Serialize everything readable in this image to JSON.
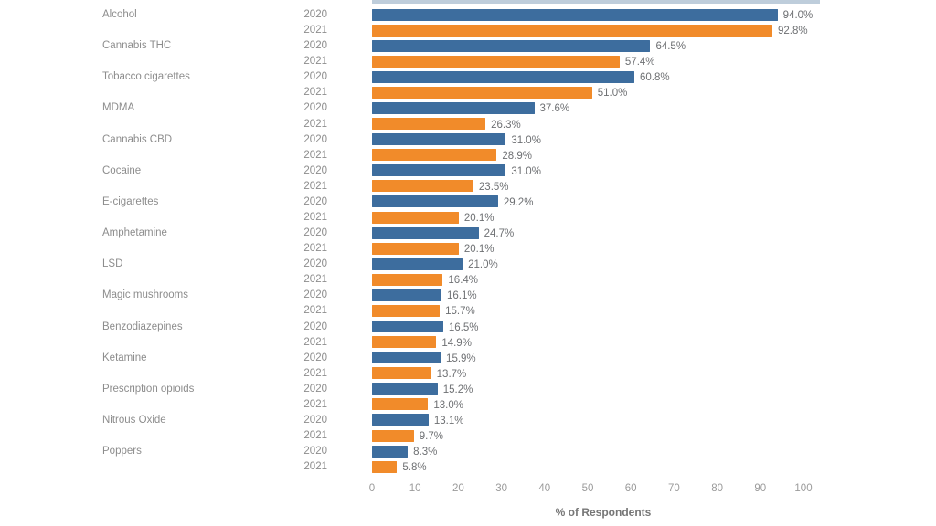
{
  "chart_data": {
    "type": "bar",
    "orientation": "horizontal",
    "title": "",
    "xlabel": "% of Respondents",
    "ylabel": "",
    "xlim": [
      0,
      100
    ],
    "x_ticks": [
      0,
      10,
      20,
      30,
      40,
      50,
      60,
      70,
      80,
      90,
      100
    ],
    "grid": false,
    "legend_position": "none",
    "categories": [
      "Alcohol",
      "Cannabis THC",
      "Tobacco cigarettes",
      "MDMA",
      "Cannabis CBD",
      "Cocaine",
      "E-cigarettes",
      "Amphetamine",
      "LSD",
      "Magic mushrooms",
      "Benzodiazepines",
      "Ketamine",
      "Prescription opioids",
      "Nitrous Oxide",
      "Poppers"
    ],
    "series": [
      {
        "name": "2020",
        "color": "#3d6d9e",
        "values": [
          94.0,
          64.5,
          60.8,
          37.6,
          31.0,
          31.0,
          29.2,
          24.7,
          21.0,
          16.1,
          16.5,
          15.9,
          15.2,
          13.1,
          8.3
        ],
        "labels": [
          "94.0%",
          "64.5%",
          "60.8%",
          "37.6%",
          "31.0%",
          "31.0%",
          "29.2%",
          "24.7%",
          "21.0%",
          "16.1%",
          "16.5%",
          "15.9%",
          "15.2%",
          "13.1%",
          "8.3%"
        ]
      },
      {
        "name": "2021",
        "color": "#f18b2a",
        "values": [
          92.8,
          57.4,
          51.0,
          26.3,
          28.9,
          23.5,
          20.1,
          20.1,
          16.4,
          15.7,
          14.9,
          13.7,
          13.0,
          9.7,
          5.8
        ],
        "labels": [
          "92.8%",
          "57.4%",
          "51.0%",
          "26.3%",
          "28.9%",
          "23.5%",
          "20.1%",
          "20.1%",
          "16.4%",
          "15.7%",
          "14.9%",
          "13.7%",
          "13.0%",
          "9.7%",
          "5.8%"
        ]
      }
    ]
  },
  "colors": {
    "bar_2020": "#3d6d9e",
    "bar_2021": "#f18b2a",
    "category_label": "#8d8d8d",
    "value_label": "#6e7073",
    "tick_label": "#9b9b9b",
    "axis_title": "#767676",
    "background": "#ffffff"
  }
}
